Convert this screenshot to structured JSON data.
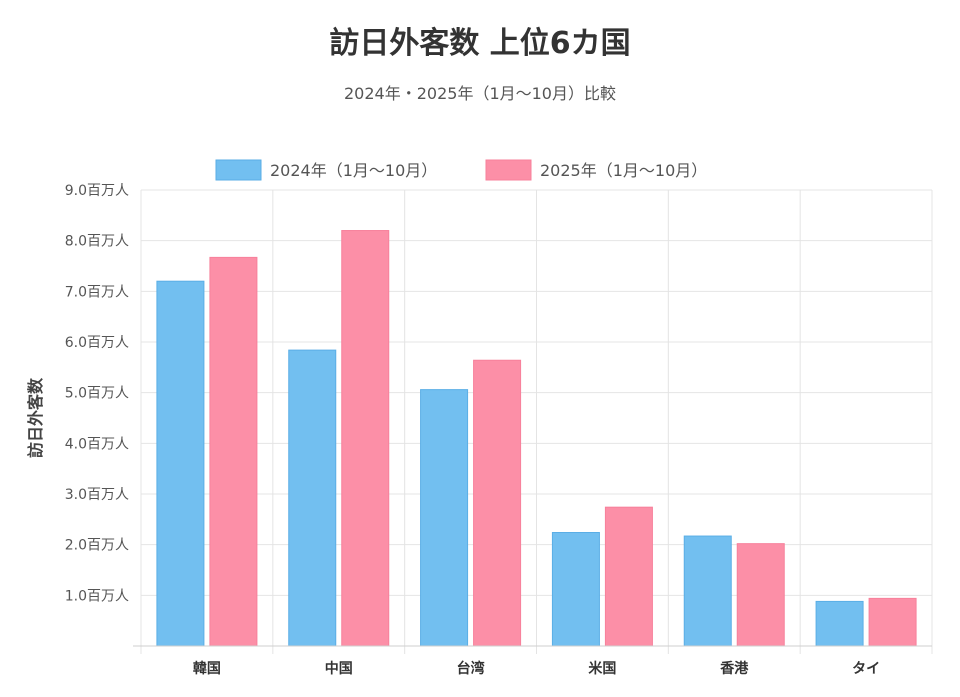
{
  "chart_data": {
    "type": "bar",
    "title": "訪日外客数 上位6カ国",
    "subtitle": "2024年・2025年（1月〜10月）比較",
    "ylabel": "訪日外客数",
    "xlabel": "",
    "categories": [
      "韓国",
      "中国",
      "台湾",
      "米国",
      "香港",
      "タイ"
    ],
    "series": [
      {
        "name": "2024年（1月〜10月）",
        "color": "#72bff0",
        "stroke": "#5aaee6",
        "values": [
          7.2,
          5.84,
          5.06,
          2.24,
          2.17,
          0.88
        ]
      },
      {
        "name": "2025年（1月〜10月）",
        "color": "#fc8fa7",
        "stroke": "#f7809b",
        "values": [
          7.67,
          8.2,
          5.64,
          2.74,
          2.02,
          0.94
        ]
      }
    ],
    "ylim": [
      0,
      9
    ],
    "yticks": [
      {
        "value": 1,
        "label": "1.0百万人"
      },
      {
        "value": 2,
        "label": "2.0百万人"
      },
      {
        "value": 3,
        "label": "3.0百万人"
      },
      {
        "value": 4,
        "label": "4.0百万人"
      },
      {
        "value": 5,
        "label": "5.0百万人"
      },
      {
        "value": 6,
        "label": "6.0百万人"
      },
      {
        "value": 7,
        "label": "7.0百万人"
      },
      {
        "value": 8,
        "label": "8.0百万人"
      },
      {
        "value": 9,
        "label": "9.0百万人"
      }
    ],
    "grid": true,
    "legend_position": "top"
  }
}
